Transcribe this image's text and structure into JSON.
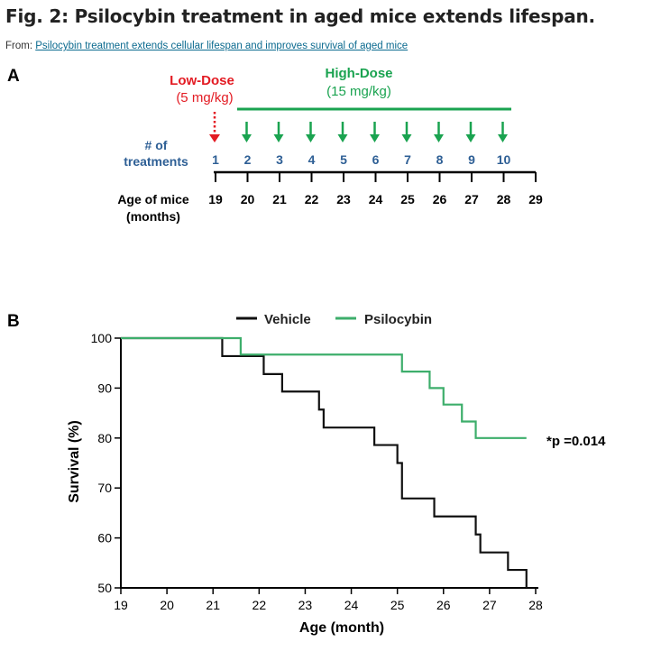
{
  "figure": {
    "title": "Fig. 2: Psilocybin treatment in aged mice extends lifespan.",
    "from_label": "From:",
    "source_link": "Psilocybin treatment extends cellular lifespan and improves survival of aged mice"
  },
  "colors": {
    "low_dose": "#e31b23",
    "high_dose": "#1aa350",
    "treat": "#2e5f95",
    "vehicle": "#111111",
    "psilocybin": "#3dae6b"
  },
  "panel_a": {
    "label": "A",
    "low_dose": {
      "title": "Low-Dose",
      "dose": "(5 mg/kg)"
    },
    "high_dose": {
      "title": "High-Dose",
      "dose": "(15 mg/kg)"
    },
    "treatments_label_1": "# of",
    "treatments_label_2": "treatments",
    "treatment_numbers": [
      "1",
      "2",
      "3",
      "4",
      "5",
      "6",
      "7",
      "8",
      "9",
      "10"
    ],
    "age_label_1": "Age of mice",
    "age_label_2": "(months)",
    "ages": [
      "19",
      "20",
      "21",
      "22",
      "23",
      "24",
      "25",
      "26",
      "27",
      "28",
      "29"
    ]
  },
  "chart_data": {
    "type": "line",
    "title": "",
    "label": "B",
    "xlabel": "Age (month)",
    "ylabel": "Survival (%)",
    "xlim": [
      19,
      28
    ],
    "ylim": [
      50,
      100
    ],
    "xticks": [
      19,
      20,
      21,
      22,
      23,
      24,
      25,
      26,
      27,
      28
    ],
    "yticks": [
      50,
      60,
      70,
      80,
      90,
      100
    ],
    "legend": "top",
    "annotation": "*p =0.014",
    "series": [
      {
        "name": "Vehicle",
        "color": "#111111",
        "step": true,
        "x": [
          19,
          21.2,
          22.1,
          22.5,
          23.3,
          23.4,
          24.5,
          25.0,
          25.1,
          25.8,
          26.7,
          26.8,
          27.4,
          27.8
        ],
        "y": [
          100,
          96.4,
          92.8,
          89.3,
          85.7,
          82.1,
          78.6,
          75.0,
          67.9,
          64.3,
          60.7,
          57.1,
          53.6,
          50.0
        ]
      },
      {
        "name": "Psilocybin",
        "color": "#3dae6b",
        "step": true,
        "x": [
          19,
          21.6,
          25.1,
          25.7,
          26.0,
          26.4,
          26.7,
          27.8
        ],
        "y": [
          100,
          96.7,
          93.3,
          90.0,
          86.7,
          83.3,
          80.0,
          80.0
        ]
      }
    ]
  }
}
